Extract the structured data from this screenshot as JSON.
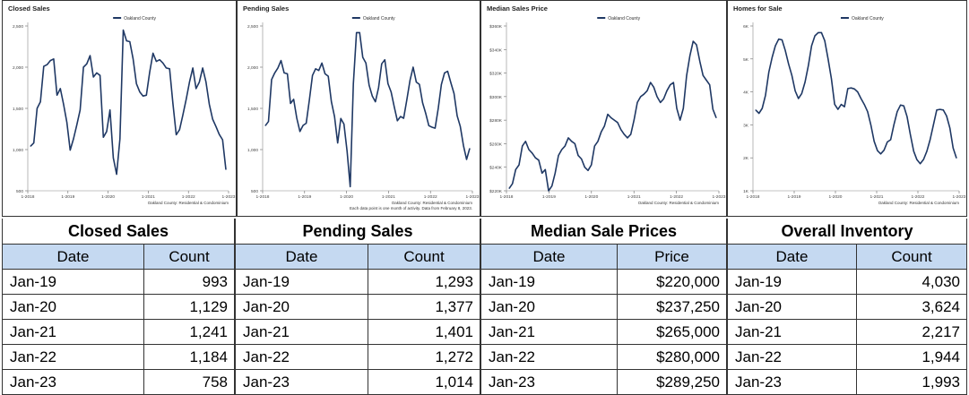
{
  "chart_data": [
    {
      "type": "line",
      "title": "Closed Sales",
      "legend": "Oakland County",
      "footer": [
        "Oakland County: Residential & Condominium"
      ],
      "x_tick_labels": [
        "1-2018",
        "1-2019",
        "1-2020",
        "1-2021",
        "1-2022",
        "1-2023"
      ],
      "y_ticks": [
        500,
        1000,
        1500,
        2000,
        2500
      ],
      "y_tick_labels": [
        "500",
        "1,000",
        "1,500",
        "2,000",
        "2,500"
      ],
      "ylim": [
        500,
        2500
      ],
      "series": [
        {
          "values": [
            1040,
            1080,
            1500,
            1580,
            2010,
            2030,
            2080,
            2100,
            1660,
            1740,
            1550,
            1330,
            993,
            1130,
            1300,
            1480,
            2000,
            2040,
            2140,
            1880,
            1930,
            1900,
            1150,
            1220,
            1480,
            900,
            700,
            1129,
            2450,
            2320,
            2310,
            2100,
            1800,
            1700,
            1650,
            1660,
            1940,
            2170,
            2070,
            2090,
            2050,
            1990,
            1980,
            1560,
            1180,
            1241,
            1420,
            1610,
            1820,
            1990,
            1740,
            1820,
            1990,
            1820,
            1550,
            1370,
            1280,
            1184,
            1120,
            758
          ]
        }
      ]
    },
    {
      "type": "line",
      "title": "Pending Sales",
      "legend": "Oakland County",
      "footer": [
        "Oakland County: Residential & Condominium",
        "Each data point is one month of activity. Data from February 8, 2023."
      ],
      "x_tick_labels": [
        "1-2018",
        "1-2019",
        "1-2020",
        "1-2021",
        "1-2022",
        "1-2023"
      ],
      "y_ticks": [
        500,
        1000,
        1500,
        2000,
        2500
      ],
      "y_tick_labels": [
        "500",
        "1,000",
        "1,500",
        "2,000",
        "2,500"
      ],
      "ylim": [
        500,
        2500
      ],
      "series": [
        {
          "values": [
            1290,
            1340,
            1850,
            1930,
            1990,
            2080,
            1930,
            1920,
            1560,
            1610,
            1380,
            1220,
            1293,
            1320,
            1600,
            1900,
            1980,
            1960,
            2050,
            1920,
            1890,
            1580,
            1400,
            1080,
            1377,
            1310,
            980,
            550,
            1800,
            2420,
            2420,
            2120,
            2050,
            1780,
            1650,
            1580,
            1750,
            2040,
            2090,
            1800,
            1700,
            1520,
            1350,
            1401,
            1380,
            1600,
            1840,
            2000,
            1820,
            1790,
            1570,
            1440,
            1290,
            1272,
            1260,
            1500,
            1790,
            1930,
            1950,
            1810,
            1680,
            1410,
            1280,
            1050,
            880,
            1014
          ]
        }
      ]
    },
    {
      "type": "line",
      "title": "Median Sales Price",
      "legend": "Oakland County",
      "footer": [
        "Oakland County: Residential & Condominium"
      ],
      "x_tick_labels": [
        "1-2018",
        "1-2019",
        "1-2020",
        "1-2021",
        "1-2022",
        "1-2023"
      ],
      "y_ticks": [
        220000,
        240000,
        260000,
        280000,
        300000,
        320000,
        340000,
        360000
      ],
      "y_tick_labels": [
        "$220K",
        "$240K",
        "$260K",
        "$280K",
        "$300K",
        "$320K",
        "$340K",
        "$360K"
      ],
      "ylim": [
        220000,
        360000
      ],
      "series": [
        {
          "values": [
            222000,
            226000,
            238000,
            242000,
            258000,
            262000,
            255000,
            252000,
            248000,
            246000,
            235000,
            238000,
            220000,
            224000,
            235000,
            250000,
            255000,
            258000,
            265000,
            262000,
            260000,
            250000,
            247000,
            240000,
            237250,
            242000,
            258000,
            262000,
            270000,
            275000,
            285000,
            282000,
            280000,
            278000,
            272000,
            268000,
            265000,
            268000,
            280000,
            295000,
            300000,
            302000,
            305000,
            312000,
            308000,
            300000,
            295000,
            298000,
            305000,
            310000,
            312000,
            290000,
            280000,
            290000,
            318000,
            335000,
            347000,
            344000,
            330000,
            318000,
            314000,
            310000,
            289250,
            282000
          ]
        }
      ]
    },
    {
      "type": "line",
      "title": "Homes for Sale",
      "legend": "Oakland County",
      "footer": [
        "Oakland County: Residential & Condominium"
      ],
      "x_tick_labels": [
        "1-2018",
        "1-2019",
        "1-2020",
        "1-2021",
        "1-2022",
        "1-2023"
      ],
      "y_ticks": [
        1000,
        2000,
        3000,
        4000,
        5000,
        6000
      ],
      "y_tick_labels": [
        "1K",
        "2K",
        "3K",
        "4K",
        "5K",
        "6K"
      ],
      "ylim": [
        1000,
        6000
      ],
      "series": [
        {
          "values": [
            3450,
            3350,
            3500,
            3900,
            4600,
            5050,
            5400,
            5600,
            5580,
            5260,
            4850,
            4500,
            4030,
            3800,
            3950,
            4300,
            4800,
            5400,
            5700,
            5800,
            5800,
            5550,
            5000,
            4400,
            3624,
            3470,
            3620,
            3550,
            4100,
            4120,
            4090,
            4000,
            3800,
            3620,
            3400,
            3000,
            2500,
            2217,
            2120,
            2230,
            2480,
            2550,
            3000,
            3400,
            3600,
            3580,
            3250,
            2700,
            2200,
            1944,
            1820,
            1950,
            2200,
            2550,
            3000,
            3450,
            3470,
            3450,
            3270,
            2900,
            2300,
            1993
          ]
        }
      ]
    }
  ],
  "tables": [
    {
      "title": "Closed Sales",
      "col_date": "Date",
      "col_value": "Count",
      "rows": [
        [
          "Jan-19",
          "993"
        ],
        [
          "Jan-20",
          "1,129"
        ],
        [
          "Jan-21",
          "1,241"
        ],
        [
          "Jan-22",
          "1,184"
        ],
        [
          "Jan-23",
          "758"
        ]
      ]
    },
    {
      "title": "Pending Sales",
      "col_date": "Date",
      "col_value": "Count",
      "rows": [
        [
          "Jan-19",
          "1,293"
        ],
        [
          "Jan-20",
          "1,377"
        ],
        [
          "Jan-21",
          "1,401"
        ],
        [
          "Jan-22",
          "1,272"
        ],
        [
          "Jan-23",
          "1,014"
        ]
      ]
    },
    {
      "title": "Median Sale Prices",
      "col_date": "Date",
      "col_value": "Price",
      "rows": [
        [
          "Jan-19",
          "$220,000"
        ],
        [
          "Jan-20",
          "$237,250"
        ],
        [
          "Jan-21",
          "$265,000"
        ],
        [
          "Jan-22",
          "$280,000"
        ],
        [
          "Jan-23",
          "$289,250"
        ]
      ]
    },
    {
      "title": "Overall Inventory",
      "col_date": "Date",
      "col_value": "Count",
      "rows": [
        [
          "Jan-19",
          "4,030"
        ],
        [
          "Jan-20",
          "3,624"
        ],
        [
          "Jan-21",
          "2,217"
        ],
        [
          "Jan-22",
          "1,944"
        ],
        [
          "Jan-23",
          "1,993"
        ]
      ]
    }
  ],
  "colors": {
    "line": "#1f3864",
    "header_fill": "#c5d9f1",
    "border": "#333333"
  }
}
